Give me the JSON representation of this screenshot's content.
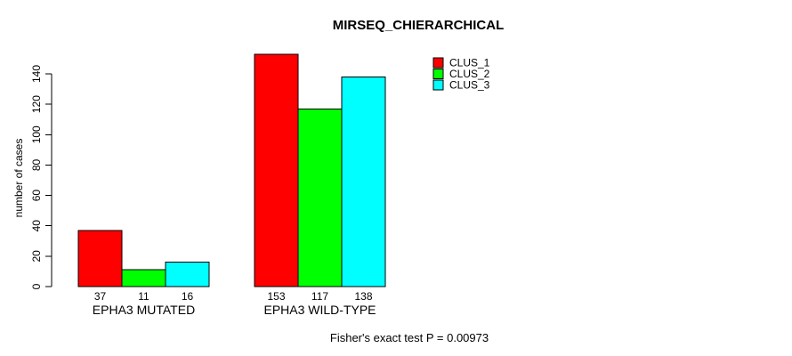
{
  "chart_data": {
    "type": "bar",
    "title": "MIRSEQ_CHIERARCHICAL",
    "ylabel": "number of cases",
    "xlabel": "",
    "categories": [
      "EPHA3 MUTATED",
      "EPHA3 WILD-TYPE"
    ],
    "series": [
      {
        "name": "CLUS_1",
        "color": "#ff0000",
        "values": [
          37,
          153
        ]
      },
      {
        "name": "CLUS_2",
        "color": "#00ff00",
        "values": [
          11,
          117
        ]
      },
      {
        "name": "CLUS_3",
        "color": "#00ffff",
        "values": [
          16,
          138
        ]
      }
    ],
    "yticks": [
      0,
      20,
      40,
      60,
      80,
      100,
      120,
      140
    ],
    "ylim": [
      0,
      140
    ],
    "grid": false,
    "value_labels_shown": true,
    "legend_position": "top-right",
    "legend_entries": [
      "CLUS_1",
      "CLUS_2",
      "CLUS_3"
    ],
    "annotation": "Fisher's exact test P = 0.00973",
    "colors": {
      "background": "#ffffff",
      "text": "#000000",
      "axis": "#000000",
      "bar_border": "#000000"
    }
  }
}
